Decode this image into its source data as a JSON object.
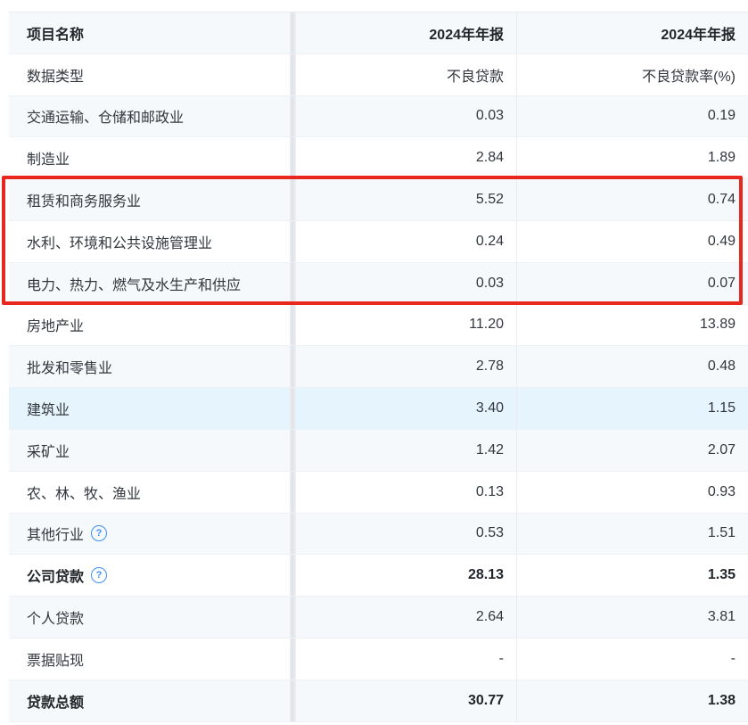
{
  "table": {
    "header": {
      "name": "项目名称",
      "period1": "2024年年报",
      "period2": "2024年年报"
    },
    "subheader": {
      "name": "数据类型",
      "col2": "不良贷款",
      "col3": "不良贷款率(%)"
    },
    "rows": [
      {
        "name": "交通运输、仓储和邮政业",
        "npl": "0.03",
        "ratio": "0.19"
      },
      {
        "name": "制造业",
        "npl": "2.84",
        "ratio": "1.89"
      },
      {
        "name": "租赁和商务服务业",
        "npl": "5.52",
        "ratio": "0.74"
      },
      {
        "name": "水利、环境和公共设施管理业",
        "npl": "0.24",
        "ratio": "0.49"
      },
      {
        "name": "电力、热力、燃气及水生产和供应",
        "npl": "0.03",
        "ratio": "0.07"
      },
      {
        "name": "房地产业",
        "npl": "11.20",
        "ratio": "13.89"
      },
      {
        "name": "批发和零售业",
        "npl": "2.78",
        "ratio": "0.48"
      },
      {
        "name": "建筑业",
        "npl": "3.40",
        "ratio": "1.15"
      },
      {
        "name": "采矿业",
        "npl": "1.42",
        "ratio": "2.07"
      },
      {
        "name": "农、林、牧、渔业",
        "npl": "0.13",
        "ratio": "0.93"
      },
      {
        "name": "其他行业",
        "npl": "0.53",
        "ratio": "1.51"
      },
      {
        "name": "公司贷款",
        "npl": "28.13",
        "ratio": "1.35"
      },
      {
        "name": "个人贷款",
        "npl": "2.64",
        "ratio": "3.81"
      },
      {
        "name": "票据贴现",
        "npl": "-",
        "ratio": "-"
      },
      {
        "name": "贷款总额",
        "npl": "30.77",
        "ratio": "1.38"
      }
    ]
  },
  "icons": {
    "help_glyph": "?"
  },
  "colors": {
    "annotation_red": "#e8281e",
    "help_icon_blue": "#3e8ef7",
    "hover_row_blue": "#e6f4fd",
    "stripe_row": "#f5f9fc"
  }
}
